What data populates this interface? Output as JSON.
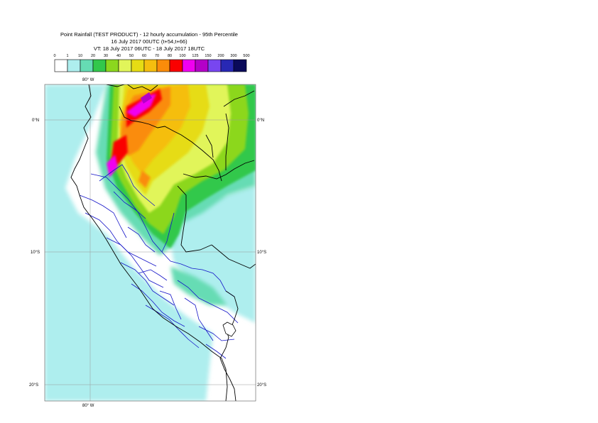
{
  "header": {
    "line1": "Point Rainfall (TEST PRODUCT) - 12 hourly accumulation - 95th Percentile",
    "line2": "16 July 2017 00UTC (t+54,t+66)",
    "line3": "VT: 18 July 2017 06UTC - 18 July 2017 18UTC"
  },
  "legend": {
    "ticks": [
      "0",
      "1",
      "10",
      "20",
      "30",
      "40",
      "50",
      "60",
      "70",
      "80",
      "100",
      "125",
      "150",
      "200",
      "300",
      "500"
    ],
    "colors": [
      "#ffffff",
      "#aeeeee",
      "#66dcb4",
      "#32c84b",
      "#8cd71e",
      "#e1f55a",
      "#e6dc14",
      "#f5be0f",
      "#fa8c0a",
      "#fa0000",
      "#f000f0",
      "#b400c8",
      "#7846f0",
      "#2828b4",
      "#0a0a5a"
    ]
  },
  "map": {
    "lon_labels": [
      "80° W",
      "80° W"
    ],
    "lat_labels": {
      "eq": "0°N",
      "s10": "10°S",
      "s20": "20°S"
    },
    "colors": {
      "coast": "#000000",
      "provinces": "#1414c8",
      "grid": "#999999"
    }
  }
}
